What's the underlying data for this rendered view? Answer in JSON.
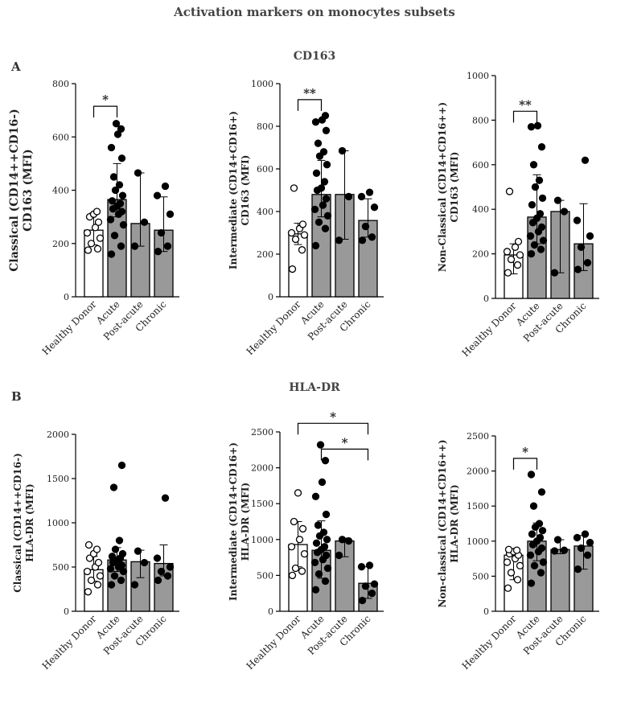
{
  "figure": {
    "title": "Activation markers on monocytes subsets",
    "row_a": {
      "letter": "A",
      "marker": "CD163"
    },
    "row_b": {
      "letter": "B",
      "marker": "HLA-DR"
    }
  },
  "colors": {
    "bar_fill_hd": "#ffffff",
    "bar_fill_patient": "#999999",
    "axis": "#000000"
  },
  "chart_data": [
    {
      "type": "bar",
      "id": "a1",
      "title": "",
      "ylabel": "Classical (CD14++CD16-)\nCD163 (MFI)",
      "categories": [
        "Healthy Donor",
        "Acute",
        "Post-acute",
        "Chronic"
      ],
      "ylim": [
        0,
        800
      ],
      "yticks": [
        0,
        200,
        400,
        600,
        800
      ],
      "values": [
        250,
        365,
        275,
        250
      ],
      "error_upper": [
        315,
        500,
        465,
        375
      ],
      "error_lower": [
        195,
        300,
        190,
        170
      ],
      "points": [
        [
          175,
          180,
          200,
          220,
          240,
          260,
          280,
          300,
          310,
          320
        ],
        [
          160,
          190,
          230,
          270,
          290,
          310,
          320,
          330,
          340,
          350,
          360,
          380,
          400,
          420,
          450,
          520,
          560,
          610,
          630,
          650
        ],
        [
          190,
          280,
          465
        ],
        [
          170,
          190,
          240,
          310,
          380,
          415
        ]
      ],
      "annotations": [
        {
          "text": "*",
          "from": 0,
          "to": 1,
          "level": 715
        }
      ]
    },
    {
      "type": "bar",
      "id": "a2",
      "title": "",
      "ylabel": "Intermediate  (CD14+CD16+)\nCD163 (MFI)",
      "categories": [
        "Healthy Donor",
        "Acute",
        "Post-acute",
        "Chronic"
      ],
      "ylim": [
        0,
        1000
      ],
      "yticks": [
        0,
        200,
        400,
        600,
        800,
        1000
      ],
      "values": [
        295,
        480,
        480,
        358
      ],
      "error_upper": [
        345,
        640,
        685,
        460
      ],
      "error_lower": [
        245,
        375,
        270,
        280
      ],
      "points": [
        [
          130,
          220,
          270,
          290,
          300,
          320,
          340,
          510
        ],
        [
          240,
          320,
          350,
          380,
          410,
          430,
          460,
          500,
          510,
          540,
          580,
          620,
          660,
          680,
          720,
          780,
          820,
          830,
          850
        ],
        [
          265,
          470,
          685
        ],
        [
          265,
          280,
          330,
          420,
          470,
          490
        ]
      ],
      "annotations": [
        {
          "text": "**",
          "from": 0,
          "to": 1,
          "level": 925
        }
      ]
    },
    {
      "type": "bar",
      "id": "a3",
      "title": "",
      "ylabel": "Non-Classical (CD14+CD16++)\nCD163 (MFI)",
      "categories": [
        "Healthy Donor",
        "Acute",
        "Post-acute",
        "Chronic"
      ],
      "ylim": [
        0,
        1000
      ],
      "yticks": [
        0,
        200,
        400,
        600,
        800,
        1000
      ],
      "values": [
        195,
        365,
        390,
        245
      ],
      "error_upper": [
        245,
        555,
        440,
        425
      ],
      "error_lower": [
        110,
        245,
        115,
        125
      ],
      "points": [
        [
          115,
          150,
          175,
          195,
          210,
          230,
          255,
          480
        ],
        [
          200,
          220,
          240,
          260,
          280,
          300,
          320,
          340,
          360,
          380,
          420,
          450,
          500,
          530,
          600,
          680,
          770,
          775
        ],
        [
          115,
          390,
          440
        ],
        [
          130,
          160,
          230,
          280,
          350,
          620
        ]
      ],
      "annotations": [
        {
          "text": "**",
          "from": 0,
          "to": 1,
          "level": 840
        }
      ]
    },
    {
      "type": "bar",
      "id": "b1",
      "title": "",
      "ylabel": "Classical (CD14++CD16-)\nHLA-DR (MFI)",
      "categories": [
        "Healthy Donor",
        "Acute",
        "Post-acute",
        "Chronic"
      ],
      "ylim": [
        0,
        2000
      ],
      "yticks": [
        0,
        500,
        1000,
        1500,
        2000
      ],
      "values": [
        470,
        580,
        560,
        540
      ],
      "error_upper": [
        620,
        720,
        690,
        750
      ],
      "error_lower": [
        340,
        450,
        380,
        400
      ],
      "points": [
        [
          220,
          300,
          350,
          400,
          450,
          500,
          550,
          600,
          650,
          700,
          750
        ],
        [
          300,
          350,
          400,
          450,
          480,
          500,
          520,
          550,
          580,
          600,
          620,
          650,
          700,
          800,
          1400,
          1650
        ],
        [
          300,
          550,
          680
        ],
        [
          350,
          400,
          450,
          500,
          600,
          1280
        ]
      ],
      "annotations": []
    },
    {
      "type": "bar",
      "id": "b2",
      "title": "",
      "ylabel": "Intermediate  (CD14+CD16+)\nHLA-DR (MFI)",
      "categories": [
        "Healthy Donor",
        "Acute",
        "Post-acute",
        "Chronic"
      ],
      "ylim": [
        0,
        2500
      ],
      "yticks": [
        0,
        500,
        1000,
        1500,
        2000,
        2500
      ],
      "values": [
        930,
        850,
        980,
        390
      ],
      "error_upper": [
        1250,
        1260,
        1020,
        620
      ],
      "error_lower": [
        620,
        460,
        760,
        180
      ],
      "points": [
        [
          500,
          560,
          600,
          800,
          900,
          1000,
          1150,
          1250,
          1650
        ],
        [
          300,
          420,
          520,
          600,
          680,
          720,
          780,
          820,
          860,
          900,
          950,
          1000,
          1050,
          1100,
          1200,
          1350,
          1600,
          1800,
          2100,
          2320
        ],
        [
          780,
          980,
          1000
        ],
        [
          150,
          250,
          350,
          380,
          620,
          640
        ]
      ],
      "annotations": [
        {
          "text": "*",
          "from": 0,
          "to": 3,
          "level": 2620
        },
        {
          "text": "*",
          "from": 1,
          "to": 3,
          "level": 2260
        }
      ]
    },
    {
      "type": "bar",
      "id": "b3",
      "title": "",
      "ylabel": "Non-classical (CD14+CD16++)\nHLA-DR (MFI)",
      "categories": [
        "Healthy Donor",
        "Acute",
        "Post-acute",
        "Chronic"
      ],
      "ylim": [
        0,
        2500
      ],
      "yticks": [
        0,
        500,
        1000,
        1500,
        2000,
        2500
      ],
      "values": [
        800,
        1000,
        880,
        930
      ],
      "error_upper": [
        870,
        1260,
        1020,
        1080
      ],
      "error_lower": [
        450,
        720,
        820,
        600
      ],
      "points": [
        [
          330,
          450,
          550,
          650,
          700,
          750,
          800,
          820,
          850,
          870,
          880
        ],
        [
          400,
          550,
          650,
          700,
          800,
          850,
          900,
          950,
          1000,
          1050,
          1100,
          1150,
          1200,
          1250,
          1500,
          1700,
          1950
        ],
        [
          860,
          870,
          1020
        ],
        [
          600,
          800,
          900,
          980,
          1050,
          1100
        ]
      ],
      "annotations": [
        {
          "text": "*",
          "from": 0,
          "to": 1,
          "level": 2180
        }
      ]
    }
  ]
}
